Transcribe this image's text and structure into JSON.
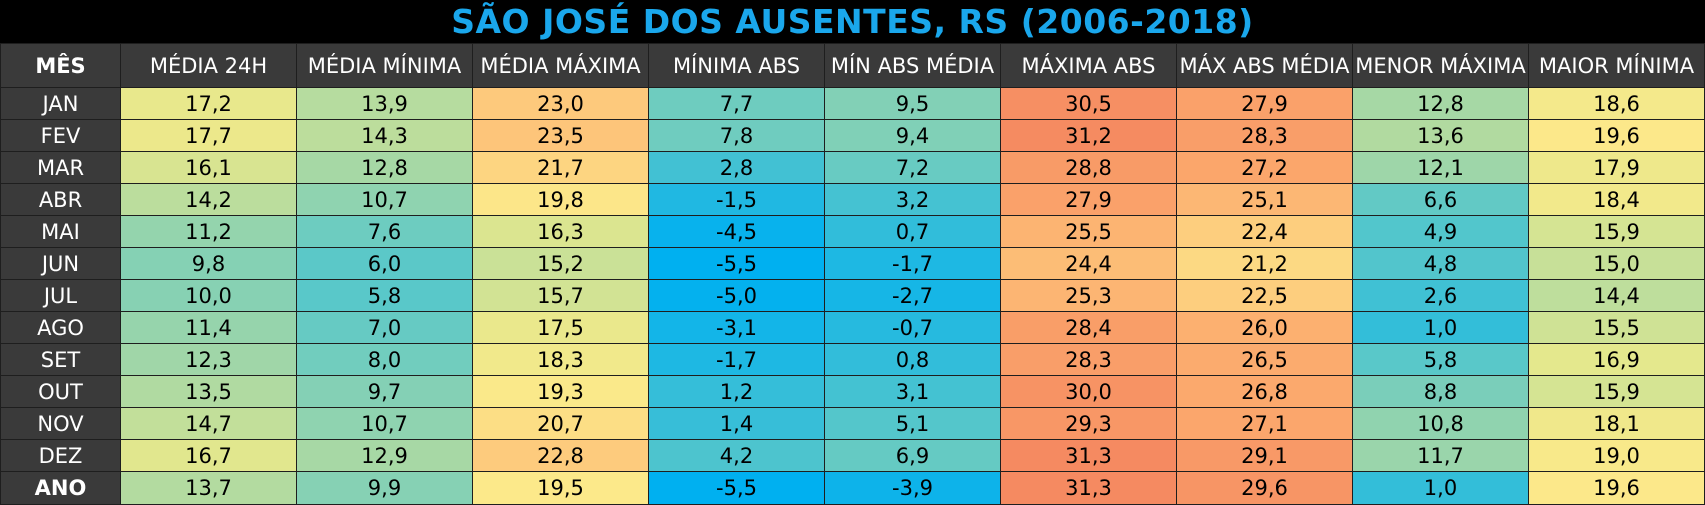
{
  "title": "SÃO JOSÉ DOS AUSENTES, RS (2006-2018)",
  "chart_data": {
    "type": "table",
    "title": "SÃO JOSÉ DOS AUSENTES, RS (2006-2018)",
    "columns": [
      "MÊS",
      "MÉDIA 24H",
      "MÉDIA MÍNIMA",
      "MÉDIA MÁXIMA",
      "MÍNIMA ABS",
      "MÍN ABS MÉDIA",
      "MÁXIMA ABS",
      "MÁX ABS MÉDIA",
      "MENOR MÁXIMA",
      "MAIOR MÍNIMA"
    ],
    "rows": [
      {
        "month": "JAN",
        "values": [
          "17,2",
          "13,9",
          "23,0",
          "7,7",
          "9,5",
          "30,5",
          "27,9",
          "12,8",
          "18,6"
        ]
      },
      {
        "month": "FEV",
        "values": [
          "17,7",
          "14,3",
          "23,5",
          "7,8",
          "9,4",
          "31,2",
          "28,3",
          "13,6",
          "19,6"
        ]
      },
      {
        "month": "MAR",
        "values": [
          "16,1",
          "12,8",
          "21,7",
          "2,8",
          "7,2",
          "28,8",
          "27,2",
          "12,1",
          "17,9"
        ]
      },
      {
        "month": "ABR",
        "values": [
          "14,2",
          "10,7",
          "19,8",
          "-1,5",
          "3,2",
          "27,9",
          "25,1",
          "6,6",
          "18,4"
        ]
      },
      {
        "month": "MAI",
        "values": [
          "11,2",
          "7,6",
          "16,3",
          "-4,5",
          "0,7",
          "25,5",
          "22,4",
          "4,9",
          "15,9"
        ]
      },
      {
        "month": "JUN",
        "values": [
          "9,8",
          "6,0",
          "15,2",
          "-5,5",
          "-1,7",
          "24,4",
          "21,2",
          "4,8",
          "15,0"
        ]
      },
      {
        "month": "JUL",
        "values": [
          "10,0",
          "5,8",
          "15,7",
          "-5,0",
          "-2,7",
          "25,3",
          "22,5",
          "2,6",
          "14,4"
        ]
      },
      {
        "month": "AGO",
        "values": [
          "11,4",
          "7,0",
          "17,5",
          "-3,1",
          "-0,7",
          "28,4",
          "26,0",
          "1,0",
          "15,5"
        ]
      },
      {
        "month": "SET",
        "values": [
          "12,3",
          "8,0",
          "18,3",
          "-1,7",
          "0,8",
          "28,3",
          "26,5",
          "5,8",
          "16,9"
        ]
      },
      {
        "month": "OUT",
        "values": [
          "13,5",
          "9,7",
          "19,3",
          "1,2",
          "3,1",
          "30,0",
          "26,8",
          "8,8",
          "15,9"
        ]
      },
      {
        "month": "NOV",
        "values": [
          "14,7",
          "10,7",
          "20,7",
          "1,4",
          "5,1",
          "29,3",
          "27,1",
          "10,8",
          "18,1"
        ]
      },
      {
        "month": "DEZ",
        "values": [
          "16,7",
          "12,9",
          "22,8",
          "4,2",
          "6,9",
          "31,3",
          "29,1",
          "11,7",
          "19,0"
        ]
      },
      {
        "month": "ANO",
        "values": [
          "13,7",
          "9,9",
          "19,5",
          "-5,5",
          "-3,9",
          "31,3",
          "29,6",
          "1,0",
          "19,6"
        ]
      }
    ],
    "color_scale": {
      "stops": [
        {
          "value": -5.5,
          "color": "#00b0f0"
        },
        {
          "value": 6,
          "color": "#5bc8c8"
        },
        {
          "value": 13,
          "color": "#a8d8a4"
        },
        {
          "value": 17,
          "color": "#e6e88c"
        },
        {
          "value": 19.5,
          "color": "#fce98a"
        },
        {
          "value": 23,
          "color": "#fdc97c"
        },
        {
          "value": 27,
          "color": "#fba76c"
        },
        {
          "value": 31.3,
          "color": "#f58a61"
        }
      ]
    }
  },
  "colors": {
    "background": "#000000",
    "title": "#1aa7ec",
    "header_bg": "#3a3a3a",
    "header_text": "#ffffff",
    "cell_text": "#000000",
    "border": "#1e1e1e"
  }
}
